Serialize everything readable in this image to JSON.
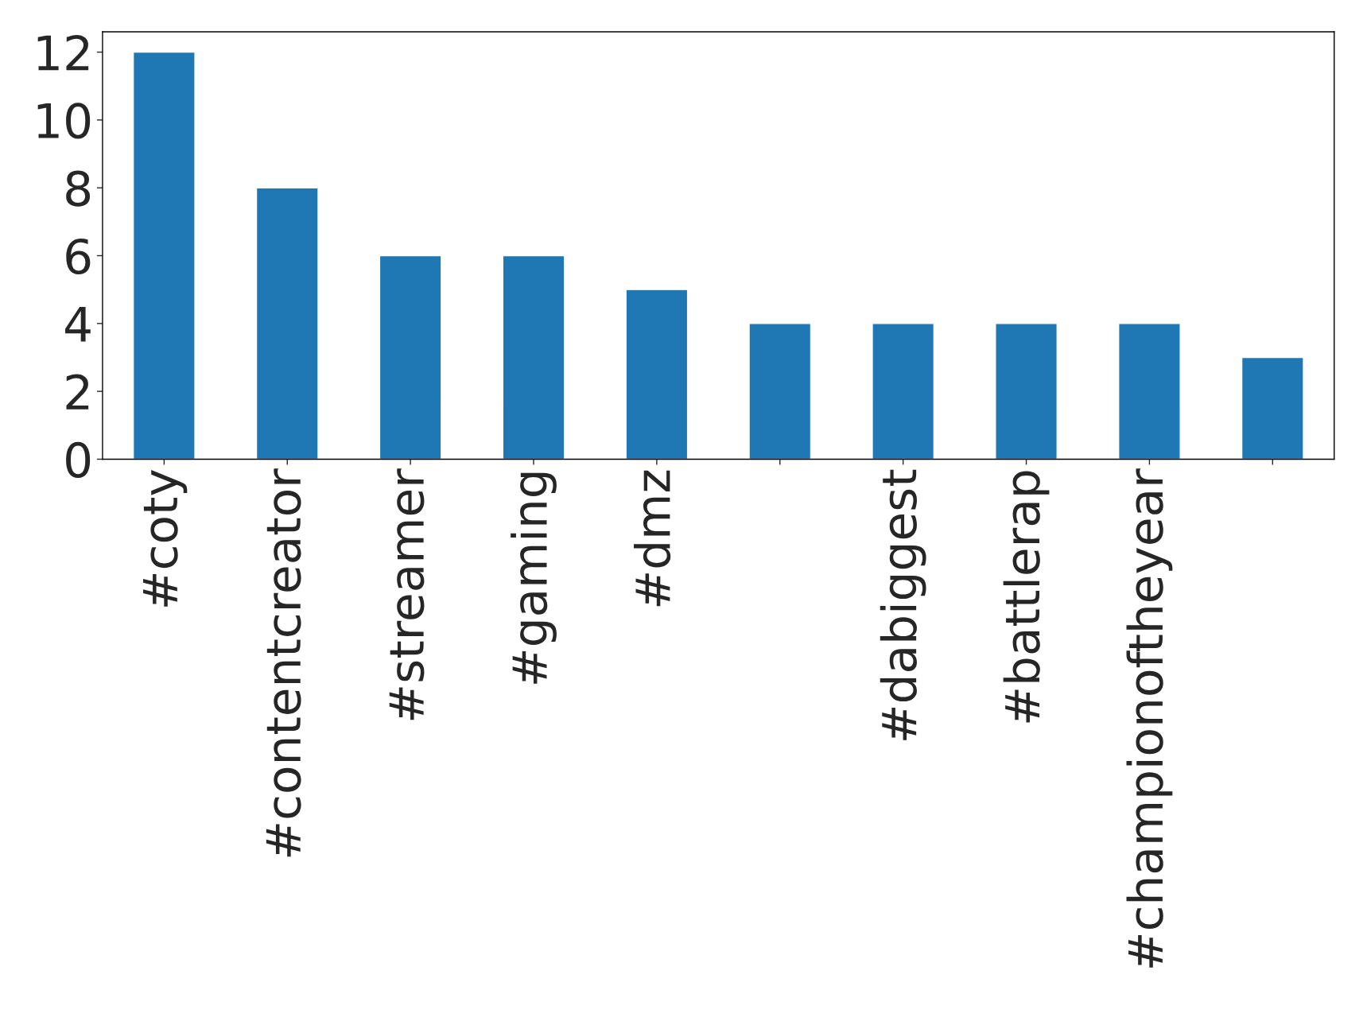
{
  "chart_data": {
    "type": "bar",
    "categories": [
      "#coty",
      "#contentcreator",
      "#streamer",
      "#gaming",
      "#dmz",
      null,
      "#dabiggest",
      "#battlerap",
      "#championoftheyear",
      null
    ],
    "values": [
      12,
      8,
      6,
      6,
      5,
      4,
      4,
      4,
      4,
      3
    ],
    "color": "#1f77b4",
    "ylim": [
      0,
      12.6
    ],
    "yticks": [
      0,
      2,
      4,
      6,
      8,
      10,
      12
    ],
    "grid": false,
    "legend": false
  }
}
